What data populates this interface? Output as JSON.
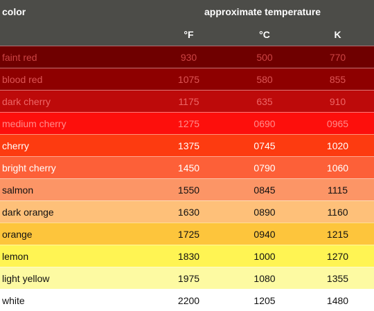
{
  "table": {
    "header": {
      "color_label": "color",
      "group_label": "approximate temperature",
      "units": [
        "°F",
        "°C",
        "K"
      ]
    },
    "rows": [
      {
        "name": "faint red",
        "f": "930",
        "c": "500",
        "k": "770",
        "bg": "#6f0000",
        "fg": "#cc4444"
      },
      {
        "name": "blood red",
        "f": "1075",
        "c": "580",
        "k": "855",
        "bg": "#8e0000",
        "fg": "#dd5555"
      },
      {
        "name": "dark cherry",
        "f": "1175",
        "c": "635",
        "k": "910",
        "bg": "#bd0a0a",
        "fg": "#ee6666"
      },
      {
        "name": "medium cherry",
        "f": "1275",
        "c": "0690",
        "k": "0965",
        "bg": "#fd0f0c",
        "fg": "#ff8b8b"
      },
      {
        "name": "cherry",
        "f": "1375",
        "c": "0745",
        "k": "1020",
        "bg": "#fd3b10",
        "fg": "#ffffff"
      },
      {
        "name": "bright cherry",
        "f": "1450",
        "c": "0790",
        "k": "1060",
        "bg": "#fd6038",
        "fg": "#ffffff"
      },
      {
        "name": "salmon",
        "f": "1550",
        "c": "0845",
        "k": "1115",
        "bg": "#fc9566",
        "fg": "#111111"
      },
      {
        "name": "dark orange",
        "f": "1630",
        "c": "0890",
        "k": "1160",
        "bg": "#fec079",
        "fg": "#111111"
      },
      {
        "name": "orange",
        "f": "1725",
        "c": "0940",
        "k": "1215",
        "bg": "#fdc53c",
        "fg": "#111111"
      },
      {
        "name": "lemon",
        "f": "1830",
        "c": "1000",
        "k": "1270",
        "bg": "#fff453",
        "fg": "#111111"
      },
      {
        "name": "light yellow",
        "f": "1975",
        "c": "1080",
        "k": "1355",
        "bg": "#fdfaa2",
        "fg": "#111111"
      },
      {
        "name": "white",
        "f": "2200",
        "c": "1205",
        "k": "1480",
        "bg": "#ffffff",
        "fg": "#111111"
      }
    ]
  }
}
